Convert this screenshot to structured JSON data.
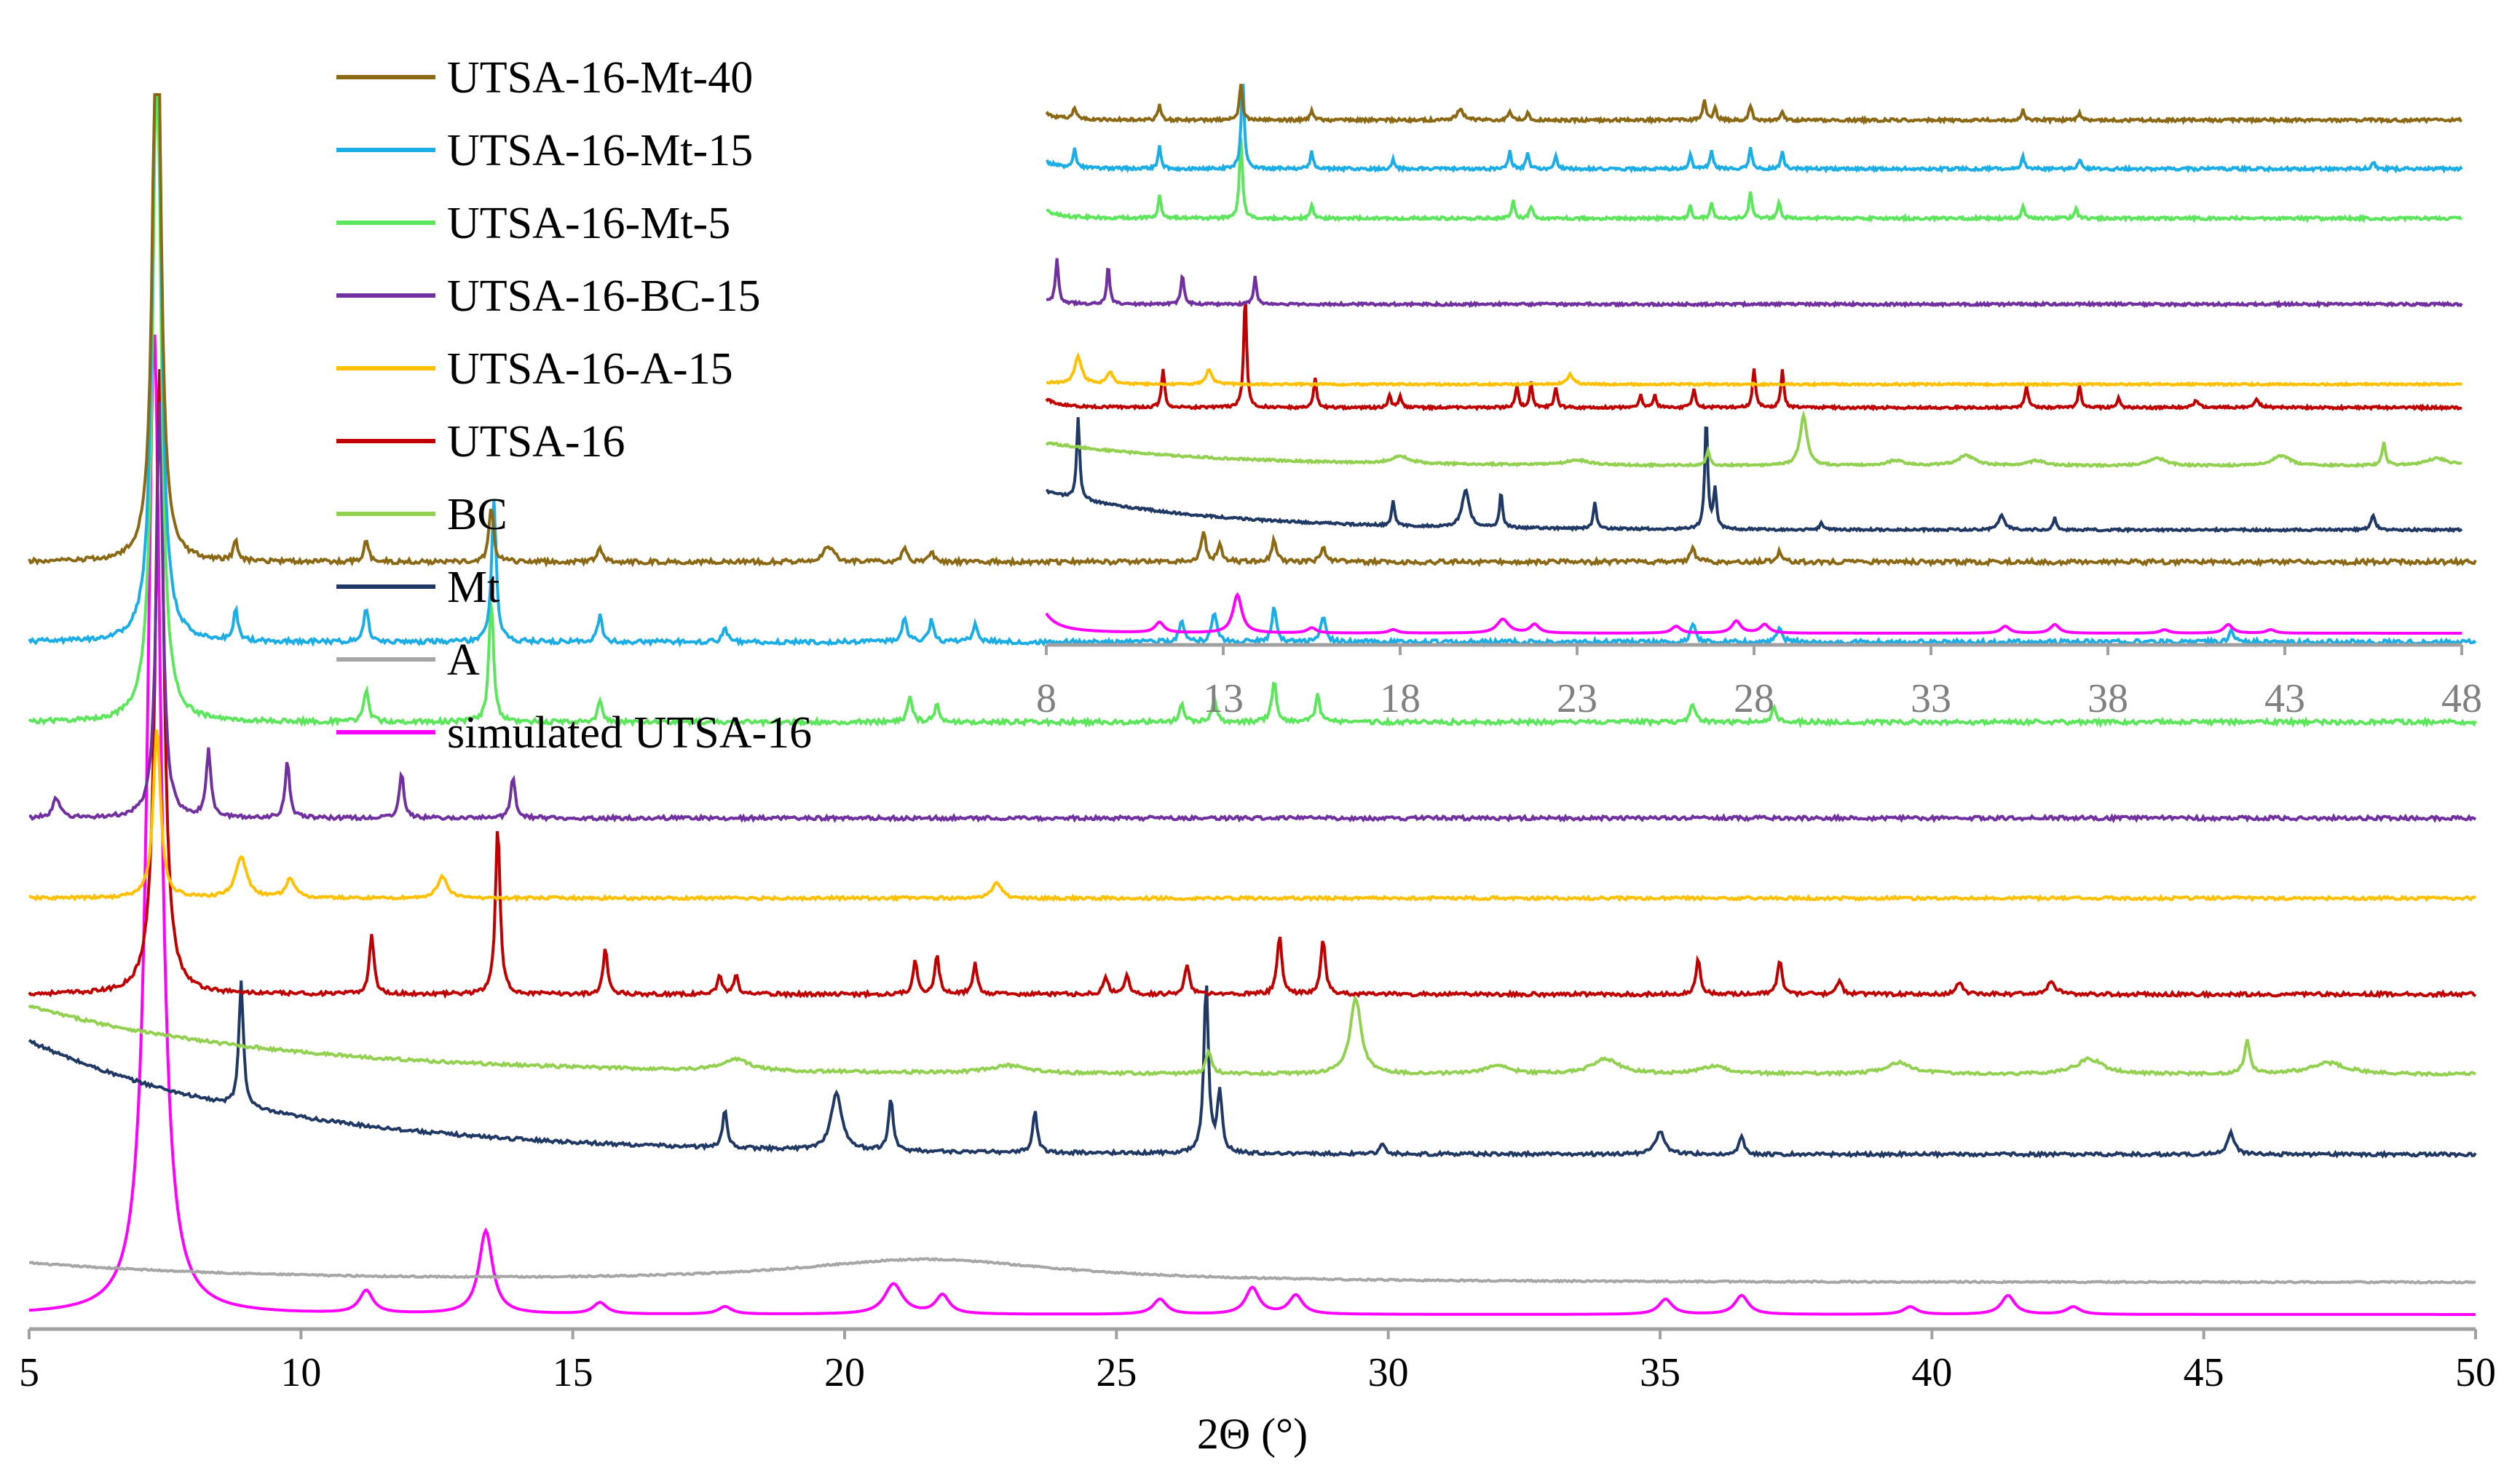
{
  "chart_data": [
    {
      "id": "main",
      "type": "line",
      "title": "",
      "xlabel": "2Θ (°)",
      "ylabel": "",
      "xlim": [
        5,
        50
      ],
      "xticks": [
        5,
        10,
        15,
        20,
        25,
        30,
        35,
        40,
        45,
        50
      ],
      "grid": false,
      "legend_placement": "top-left",
      "series": [
        {
          "name": "UTSA-16-Mt-40",
          "color": "#8B6914",
          "baseline_start": 1.0,
          "baseline_end": 1.0,
          "offset": 0.92,
          "noise": 0.012,
          "peaks": [
            [
              7.35,
              1.8,
              0.08
            ],
            [
              8.8,
              0.05,
              0.05
            ],
            [
              11.2,
              0.06,
              0.05
            ],
            [
              13.5,
              0.15,
              0.05
            ],
            [
              15.5,
              0.04,
              0.05
            ],
            [
              19.7,
              0.04,
              0.12
            ],
            [
              21.1,
              0.04,
              0.05
            ],
            [
              21.6,
              0.03,
              0.05
            ],
            [
              26.6,
              0.08,
              0.05
            ],
            [
              26.9,
              0.05,
              0.05
            ],
            [
              27.9,
              0.06,
              0.05
            ],
            [
              28.8,
              0.04,
              0.05
            ],
            [
              35.6,
              0.04,
              0.05
            ],
            [
              37.2,
              0.03,
              0.05
            ]
          ]
        },
        {
          "name": "UTSA-16-Mt-15",
          "color": "#1AADE6",
          "baseline_start": 1.0,
          "baseline_end": 1.0,
          "offset": 0.87,
          "noise": 0.012,
          "peaks": [
            [
              7.35,
              2.1,
              0.08
            ],
            [
              8.8,
              0.08,
              0.05
            ],
            [
              11.2,
              0.09,
              0.05
            ],
            [
              13.55,
              0.38,
              0.05
            ],
            [
              15.5,
              0.07,
              0.05
            ],
            [
              17.8,
              0.04,
              0.05
            ],
            [
              21.1,
              0.07,
              0.05
            ],
            [
              21.6,
              0.06,
              0.05
            ],
            [
              22.4,
              0.05,
              0.05
            ],
            [
              26.2,
              0.06,
              0.05
            ],
            [
              26.8,
              0.08,
              0.05
            ],
            [
              27.9,
              0.09,
              0.05
            ],
            [
              28.8,
              0.07,
              0.05
            ],
            [
              35.6,
              0.05,
              0.05
            ],
            [
              37.2,
              0.04,
              0.05
            ],
            [
              45.5,
              0.03,
              0.05
            ]
          ]
        },
        {
          "name": "UTSA-16-Mt-5",
          "color": "#5CE65C",
          "baseline_start": 1.0,
          "baseline_end": 1.0,
          "offset": 0.82,
          "noise": 0.012,
          "peaks": [
            [
              7.35,
              1.85,
              0.09
            ],
            [
              11.2,
              0.09,
              0.05
            ],
            [
              13.5,
              0.33,
              0.05
            ],
            [
              15.5,
              0.06,
              0.05
            ],
            [
              21.2,
              0.07,
              0.05
            ],
            [
              21.7,
              0.05,
              0.05
            ],
            [
              26.2,
              0.05,
              0.05
            ],
            [
              26.8,
              0.06,
              0.05
            ],
            [
              27.9,
              0.11,
              0.05
            ],
            [
              28.7,
              0.07,
              0.05
            ],
            [
              35.6,
              0.05,
              0.05
            ],
            [
              37.1,
              0.04,
              0.05
            ]
          ]
        },
        {
          "name": "UTSA-16-BC-15",
          "color": "#7030A0",
          "baseline_start": 1.0,
          "baseline_end": 1.0,
          "offset": 0.76,
          "noise": 0.01,
          "peaks": [
            [
              5.5,
              0.05,
              0.08
            ],
            [
              7.4,
              1.1,
              0.07
            ],
            [
              8.3,
              0.18,
              0.05
            ],
            [
              9.75,
              0.15,
              0.05
            ],
            [
              11.85,
              0.12,
              0.05
            ],
            [
              13.9,
              0.11,
              0.05
            ]
          ]
        },
        {
          "name": "UTSA-16-A-15",
          "color": "#FFC000",
          "baseline_start": 1.0,
          "baseline_end": 1.0,
          "offset": 0.71,
          "noise": 0.008,
          "peaks": [
            [
              7.35,
              0.45,
              0.08
            ],
            [
              8.9,
              0.11,
              0.12
            ],
            [
              9.8,
              0.05,
              0.1
            ],
            [
              12.6,
              0.06,
              0.1
            ],
            [
              22.8,
              0.04,
              0.1
            ]
          ]
        },
        {
          "name": "UTSA-16",
          "color": "#C00000",
          "baseline_start": 1.0,
          "baseline_end": 1.0,
          "offset": 0.65,
          "noise": 0.01,
          "peaks": [
            [
              7.4,
              1.65,
              0.09
            ],
            [
              11.3,
              0.16,
              0.05
            ],
            [
              13.62,
              0.45,
              0.05
            ],
            [
              15.6,
              0.12,
              0.05
            ],
            [
              17.7,
              0.05,
              0.05
            ],
            [
              18.0,
              0.05,
              0.05
            ],
            [
              21.3,
              0.09,
              0.05
            ],
            [
              21.7,
              0.1,
              0.05
            ],
            [
              22.4,
              0.08,
              0.05
            ],
            [
              24.8,
              0.05,
              0.05
            ],
            [
              25.2,
              0.05,
              0.05
            ],
            [
              26.3,
              0.08,
              0.05
            ],
            [
              28.0,
              0.16,
              0.05
            ],
            [
              28.8,
              0.15,
              0.05
            ],
            [
              35.7,
              0.09,
              0.05
            ],
            [
              37.2,
              0.09,
              0.05
            ],
            [
              38.3,
              0.04,
              0.05
            ],
            [
              40.5,
              0.03,
              0.08
            ],
            [
              42.2,
              0.03,
              0.1
            ]
          ]
        },
        {
          "name": "BC",
          "color": "#92D050",
          "baseline_start": 1.18,
          "baseline_end": 1.0,
          "offset": 0.6,
          "noise": 0.008,
          "peaks": [
            [
              18.0,
              0.03,
              0.3
            ],
            [
              23.0,
              0.02,
              0.4
            ],
            [
              26.7,
              0.06,
              0.06
            ],
            [
              29.4,
              0.2,
              0.12
            ],
            [
              32.0,
              0.02,
              0.3
            ],
            [
              34.0,
              0.04,
              0.3
            ],
            [
              36.0,
              0.02,
              0.3
            ],
            [
              39.4,
              0.03,
              0.3
            ],
            [
              42.9,
              0.04,
              0.3
            ],
            [
              45.8,
              0.09,
              0.06
            ],
            [
              47.3,
              0.03,
              0.4
            ]
          ]
        },
        {
          "name": "Mt",
          "color": "#1F3864",
          "baseline_start": 1.3,
          "baseline_end": 1.0,
          "offset": 0.55,
          "noise": 0.009,
          "peaks": [
            [
              8.9,
              0.33,
              0.05
            ],
            [
              17.8,
              0.1,
              0.05
            ],
            [
              19.85,
              0.15,
              0.12
            ],
            [
              20.85,
              0.14,
              0.05
            ],
            [
              23.5,
              0.11,
              0.05
            ],
            [
              26.65,
              0.45,
              0.05
            ],
            [
              26.9,
              0.16,
              0.05
            ],
            [
              29.9,
              0.03,
              0.05
            ],
            [
              35.0,
              0.06,
              0.1
            ],
            [
              36.5,
              0.05,
              0.05
            ],
            [
              45.5,
              0.06,
              0.07
            ]
          ]
        },
        {
          "name": "A",
          "color": "#A6A6A6",
          "baseline_start": 1.05,
          "baseline_end": 1.0,
          "offset": 0.47,
          "noise": 0.004,
          "peaks": [
            [
              21.5,
              0.06,
              3.0
            ]
          ]
        },
        {
          "name": "simulated UTSA-16",
          "color": "#FF00FF",
          "baseline_start": 1.0,
          "baseline_end": 1.0,
          "offset": 0.45,
          "noise": 0.0,
          "peaks": [
            [
              7.3,
              2.6,
              0.15
            ],
            [
              11.2,
              0.06,
              0.15
            ],
            [
              13.4,
              0.22,
              0.15
            ],
            [
              15.5,
              0.03,
              0.15
            ],
            [
              17.8,
              0.02,
              0.15
            ],
            [
              20.9,
              0.08,
              0.2
            ],
            [
              21.8,
              0.05,
              0.15
            ],
            [
              25.8,
              0.04,
              0.15
            ],
            [
              27.5,
              0.07,
              0.15
            ],
            [
              28.3,
              0.05,
              0.15
            ],
            [
              35.1,
              0.04,
              0.15
            ],
            [
              36.5,
              0.05,
              0.15
            ],
            [
              39.6,
              0.02,
              0.15
            ],
            [
              41.4,
              0.05,
              0.15
            ],
            [
              42.6,
              0.02,
              0.15
            ]
          ]
        }
      ]
    },
    {
      "id": "inset",
      "type": "line",
      "title": "",
      "xlabel": "",
      "ylabel": "",
      "xlim": [
        8,
        48
      ],
      "xticks": [
        8,
        13,
        18,
        23,
        28,
        33,
        38,
        43,
        48
      ],
      "grid": false,
      "series_colors": [
        "#8B6914",
        "#1AADE6",
        "#5CE65C",
        "#7030A0",
        "#FFC000",
        "#C00000",
        "#92D050",
        "#1F3864",
        "#FF00FF"
      ]
    }
  ]
}
